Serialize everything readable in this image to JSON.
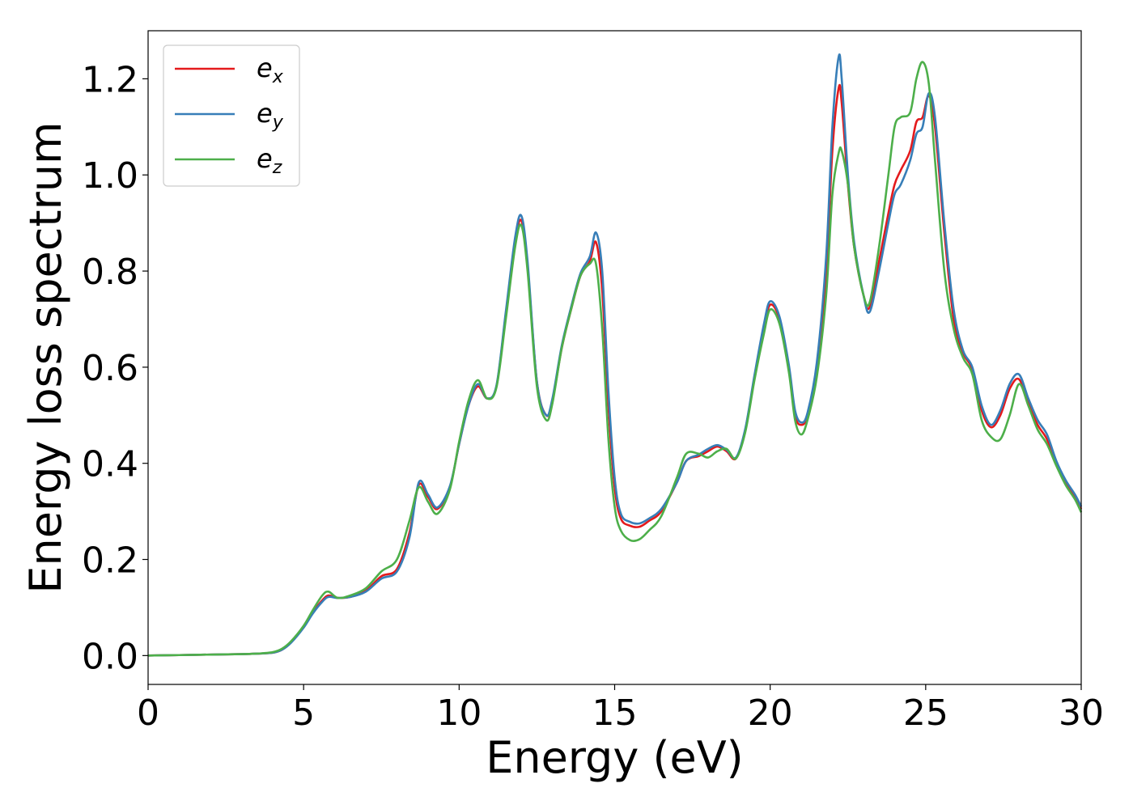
{
  "chart_data": {
    "type": "line",
    "title": "",
    "xlabel": "Energy (eV)",
    "ylabel": "Energy loss spectrum",
    "xlim": [
      0,
      30
    ],
    "ylim": [
      -0.06,
      1.3
    ],
    "xticks": [
      0,
      5,
      10,
      15,
      20,
      25,
      30
    ],
    "xtick_labels": [
      "0",
      "5",
      "10",
      "15",
      "20",
      "25",
      "30"
    ],
    "yticks": [
      0.0,
      0.2,
      0.4,
      0.6,
      0.8,
      1.0,
      1.2
    ],
    "ytick_labels": [
      "0.0",
      "0.2",
      "0.4",
      "0.6",
      "0.8",
      "1.0",
      "1.2"
    ],
    "grid": false,
    "legend_position": "top-left",
    "x": [
      0,
      1,
      2,
      3,
      3.5,
      4,
      4.3,
      4.6,
      5,
      5.3,
      5.6,
      5.8,
      6.1,
      6.5,
      7,
      7.5,
      8,
      8.4,
      8.7,
      9,
      9.3,
      9.7,
      10,
      10.3,
      10.6,
      10.9,
      11.2,
      11.5,
      11.8,
      12,
      12.2,
      12.5,
      12.8,
      13,
      13.3,
      13.6,
      13.9,
      14.2,
      14.4,
      14.6,
      14.8,
      15,
      15.2,
      15.5,
      15.8,
      16.1,
      16.5,
      17,
      17.3,
      17.7,
      18,
      18.3,
      18.6,
      18.9,
      19.2,
      19.5,
      19.8,
      20,
      20.3,
      20.6,
      20.8,
      21,
      21.2,
      21.5,
      21.8,
      22,
      22.2,
      22.3,
      22.5,
      22.7,
      23,
      23.2,
      23.5,
      23.8,
      24,
      24.2,
      24.5,
      24.7,
      24.9,
      25.1,
      25.3,
      25.6,
      25.9,
      26.2,
      26.5,
      26.8,
      27.1,
      27.4,
      27.7,
      28,
      28.3,
      28.6,
      28.9,
      29.2,
      29.5,
      29.8,
      30
    ],
    "series": [
      {
        "name": "e_x",
        "label_base": "e",
        "label_sub": "x",
        "color": "#e41a1c",
        "values": [
          0.0,
          0.001,
          0.002,
          0.003,
          0.004,
          0.006,
          0.012,
          0.028,
          0.06,
          0.09,
          0.115,
          0.125,
          0.12,
          0.122,
          0.135,
          0.165,
          0.18,
          0.255,
          0.355,
          0.33,
          0.305,
          0.35,
          0.44,
          0.52,
          0.56,
          0.535,
          0.56,
          0.71,
          0.86,
          0.905,
          0.81,
          0.57,
          0.5,
          0.53,
          0.64,
          0.72,
          0.79,
          0.82,
          0.86,
          0.76,
          0.52,
          0.35,
          0.285,
          0.27,
          0.268,
          0.28,
          0.3,
          0.36,
          0.405,
          0.415,
          0.425,
          0.435,
          0.425,
          0.41,
          0.47,
          0.58,
          0.68,
          0.73,
          0.7,
          0.6,
          0.5,
          0.48,
          0.5,
          0.6,
          0.8,
          1.05,
          1.18,
          1.15,
          0.98,
          0.85,
          0.75,
          0.725,
          0.82,
          0.92,
          0.98,
          1.01,
          1.05,
          1.11,
          1.12,
          1.165,
          1.1,
          0.88,
          0.7,
          0.63,
          0.595,
          0.51,
          0.475,
          0.5,
          0.555,
          0.575,
          0.525,
          0.48,
          0.45,
          0.4,
          0.36,
          0.33,
          0.305
        ]
      },
      {
        "name": "e_y",
        "label_base": "e",
        "label_sub": "y",
        "color": "#377eb8",
        "values": [
          0.0,
          0.001,
          0.002,
          0.003,
          0.004,
          0.006,
          0.012,
          0.027,
          0.058,
          0.088,
          0.112,
          0.122,
          0.12,
          0.122,
          0.133,
          0.16,
          0.175,
          0.245,
          0.36,
          0.335,
          0.308,
          0.352,
          0.44,
          0.52,
          0.565,
          0.535,
          0.562,
          0.715,
          0.87,
          0.915,
          0.82,
          0.57,
          0.5,
          0.535,
          0.645,
          0.725,
          0.795,
          0.83,
          0.88,
          0.8,
          0.55,
          0.37,
          0.295,
          0.278,
          0.275,
          0.285,
          0.305,
          0.36,
          0.405,
          0.418,
          0.43,
          0.438,
          0.428,
          0.412,
          0.472,
          0.585,
          0.69,
          0.737,
          0.705,
          0.605,
          0.51,
          0.485,
          0.505,
          0.61,
          0.83,
          1.1,
          1.245,
          1.2,
          1.0,
          0.86,
          0.75,
          0.715,
          0.8,
          0.9,
          0.96,
          0.98,
          1.03,
          1.085,
          1.1,
          1.17,
          1.12,
          0.9,
          0.72,
          0.635,
          0.6,
          0.52,
          0.48,
          0.51,
          0.565,
          0.585,
          0.535,
          0.49,
          0.46,
          0.405,
          0.365,
          0.335,
          0.31
        ]
      },
      {
        "name": "e_z",
        "label_base": "e",
        "label_sub": "z",
        "color": "#4daf4a",
        "values": [
          0.0,
          0.001,
          0.002,
          0.003,
          0.004,
          0.007,
          0.014,
          0.03,
          0.062,
          0.095,
          0.125,
          0.133,
          0.12,
          0.125,
          0.14,
          0.175,
          0.2,
          0.28,
          0.35,
          0.32,
          0.295,
          0.345,
          0.445,
          0.53,
          0.573,
          0.535,
          0.558,
          0.7,
          0.85,
          0.895,
          0.8,
          0.56,
          0.49,
          0.525,
          0.64,
          0.72,
          0.79,
          0.815,
          0.815,
          0.68,
          0.45,
          0.31,
          0.26,
          0.24,
          0.242,
          0.26,
          0.29,
          0.37,
          0.42,
          0.42,
          0.412,
          0.425,
          0.43,
          0.41,
          0.465,
          0.575,
          0.67,
          0.72,
          0.69,
          0.59,
          0.49,
          0.46,
          0.49,
          0.58,
          0.75,
          0.96,
          1.045,
          1.05,
          0.98,
          0.85,
          0.75,
          0.735,
          0.85,
          1.0,
          1.1,
          1.12,
          1.13,
          1.2,
          1.235,
          1.19,
          1.03,
          0.8,
          0.68,
          0.62,
          0.585,
          0.49,
          0.455,
          0.45,
          0.5,
          0.565,
          0.52,
          0.47,
          0.44,
          0.395,
          0.355,
          0.325,
          0.298
        ]
      }
    ]
  }
}
